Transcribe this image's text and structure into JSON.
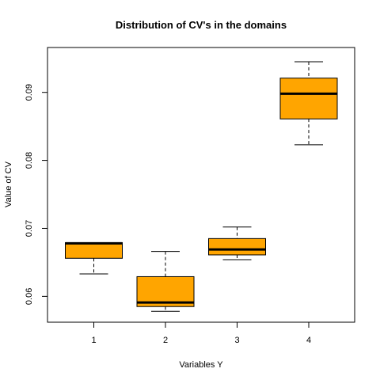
{
  "chart_data": {
    "type": "box",
    "title": "Distribution of CV's in the domains",
    "xlabel": "Variables Y",
    "ylabel": "Value of CV",
    "categories": [
      "1",
      "2",
      "3",
      "4"
    ],
    "ylim": [
      0.0562,
      0.0966
    ],
    "yticks": [
      0.06,
      0.07,
      0.08,
      0.09
    ],
    "yticklabels": [
      "0.06",
      "0.07",
      "0.08",
      "0.09"
    ],
    "box_color": "#FFA500",
    "boxes": [
      {
        "label": "1",
        "min": 0.0633,
        "q1": 0.0656,
        "median": 0.0678,
        "q3": 0.0679,
        "max": 0.0679
      },
      {
        "label": "2",
        "min": 0.0578,
        "q1": 0.0585,
        "median": 0.0591,
        "q3": 0.0629,
        "max": 0.0666
      },
      {
        "label": "3",
        "min": 0.0654,
        "q1": 0.0661,
        "median": 0.0669,
        "q3": 0.0685,
        "max": 0.0702
      },
      {
        "label": "4",
        "min": 0.0823,
        "q1": 0.0861,
        "median": 0.0898,
        "q3": 0.0921,
        "max": 0.0945
      }
    ]
  }
}
